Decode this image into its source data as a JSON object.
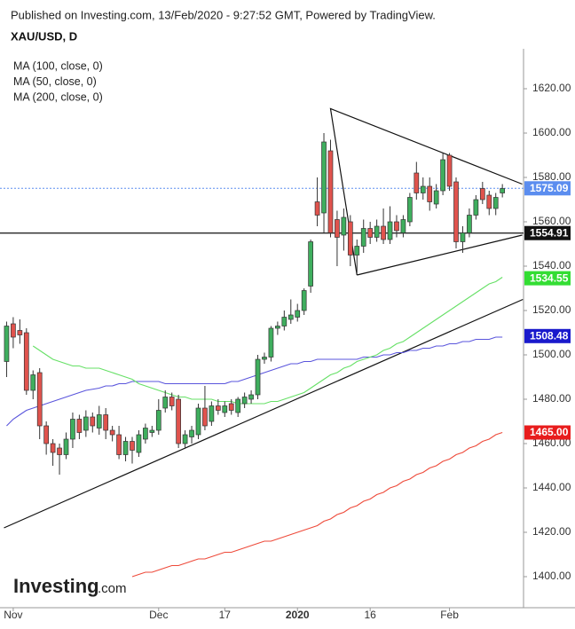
{
  "chart_data": {
    "type": "candlestick",
    "source": "Published on Investing.com, 13/Feb/2020 - 9:27:52 GMT, Powered by TradingView.",
    "title": "XAU/USD, D",
    "watermark": "Investing",
    "watermark_suffix": ".com",
    "categories": [
      null,
      "Nov",
      null,
      null,
      null,
      null,
      null,
      null,
      null,
      null,
      null,
      null,
      null,
      null,
      null,
      null,
      null,
      null,
      null,
      null,
      null,
      null,
      null,
      "Dec",
      null,
      null,
      null,
      null,
      null,
      null,
      null,
      null,
      null,
      "17",
      null,
      null,
      null,
      null,
      null,
      null,
      null,
      null,
      null,
      null,
      "2020",
      null,
      null,
      null,
      null,
      null,
      null,
      null,
      null,
      null,
      null,
      "16",
      null,
      null,
      null,
      null,
      null,
      null,
      null,
      null,
      null,
      null,
      null,
      "Feb",
      null,
      null,
      null,
      null,
      null,
      null,
      null,
      null
    ],
    "open": [
      1497,
      1514,
      1511,
      1510,
      1484,
      1492,
      1468,
      1460,
      1458,
      1455,
      1462,
      1471,
      1466,
      1472,
      1467,
      1473,
      1466,
      1464,
      1455,
      1461,
      1456,
      1462,
      1465,
      1466,
      1476,
      1481,
      1480,
      1460,
      1463,
      1464,
      1476,
      1470,
      1477,
      1474,
      1478,
      1474,
      1478,
      1480,
      1482,
      1498,
      1499,
      1512,
      1513,
      1516,
      1517,
      1520,
      1531,
      1569,
      1564,
      1592,
      1561,
      1554,
      1560,
      1545,
      1549,
      1557,
      1553,
      1558,
      1552,
      1560,
      1555,
      1560,
      1582,
      1573,
      1576,
      1568,
      1574,
      1590,
      1578,
      1551,
      1555,
      1563,
      1575,
      1572,
      1566,
      1573
    ],
    "high": [
      1515,
      1517,
      1516,
      1512,
      1493,
      1494,
      1470,
      1462,
      1460,
      1465,
      1474,
      1473,
      1475,
      1474,
      1477,
      1476,
      1468,
      1468,
      1463,
      1463,
      1466,
      1469,
      1468,
      1480,
      1484,
      1483,
      1482,
      1466,
      1468,
      1478,
      1486,
      1479,
      1480,
      1479,
      1480,
      1481,
      1483,
      1484,
      1500,
      1501,
      1513,
      1515,
      1520,
      1525,
      1523,
      1530,
      1552,
      1580,
      1600,
      1597,
      1565,
      1566,
      1563,
      1552,
      1561,
      1560,
      1561,
      1566,
      1567,
      1563,
      1563,
      1573,
      1587,
      1580,
      1580,
      1577,
      1591,
      1591,
      1580,
      1558,
      1566,
      1572,
      1578,
      1574,
      1573,
      1577
    ],
    "low": [
      1490,
      1503,
      1505,
      1482,
      1480,
      1462,
      1455,
      1450,
      1446,
      1453,
      1458,
      1462,
      1463,
      1465,
      1464,
      1462,
      1461,
      1453,
      1452,
      1451,
      1454,
      1460,
      1463,
      1464,
      1474,
      1475,
      1458,
      1458,
      1460,
      1462,
      1466,
      1468,
      1473,
      1472,
      1473,
      1472,
      1476,
      1478,
      1480,
      1496,
      1497,
      1509,
      1511,
      1514,
      1515,
      1518,
      1528,
      1558,
      1555,
      1553,
      1540,
      1547,
      1540,
      1537,
      1546,
      1550,
      1551,
      1550,
      1550,
      1553,
      1553,
      1558,
      1570,
      1570,
      1565,
      1566,
      1572,
      1574,
      1548,
      1546,
      1553,
      1561,
      1568,
      1563,
      1563,
      1571
    ],
    "close": [
      1513,
      1508,
      1509,
      1484,
      1491,
      1468,
      1460,
      1456,
      1455,
      1462,
      1471,
      1465,
      1472,
      1468,
      1473,
      1466,
      1464,
      1455,
      1461,
      1457,
      1464,
      1467,
      1466,
      1475,
      1481,
      1477,
      1460,
      1464,
      1466,
      1476,
      1468,
      1477,
      1475,
      1477,
      1475,
      1480,
      1481,
      1482,
      1498,
      1499,
      1512,
      1513,
      1517,
      1518,
      1520,
      1529,
      1551,
      1563,
      1596,
      1555,
      1553,
      1562,
      1545,
      1549,
      1557,
      1553,
      1558,
      1552,
      1560,
      1556,
      1561,
      1571,
      1573,
      1576,
      1569,
      1574,
      1588,
      1576,
      1551,
      1555,
      1563,
      1570,
      1570,
      1566,
      1571,
      1575
    ],
    "up_color": "#3fae5e",
    "down_color": "#e0534d",
    "series": [
      {
        "name": "MA (100, close, 0)",
        "color": "#5a55dc",
        "values": [
          1468,
          1471,
          1473,
          1475,
          1476,
          1477,
          1478,
          1479,
          1480,
          1481,
          1482,
          1483,
          1484,
          1484.5,
          1485,
          1486,
          1486,
          1487,
          1487,
          1488,
          1488,
          1488,
          1488,
          1488,
          1487,
          1487,
          1487,
          1487,
          1487,
          1487,
          1487,
          1487,
          1487,
          1487,
          1488,
          1488,
          1489,
          1490,
          1491,
          1492,
          1493,
          1494,
          1495,
          1496,
          1496,
          1497,
          1497,
          1498,
          1498,
          1498,
          1498,
          1498,
          1498,
          1498,
          1499,
          1499,
          1499,
          1500,
          1500,
          1501,
          1501,
          1502,
          1502,
          1503,
          1503,
          1504,
          1504,
          1505,
          1505,
          1506,
          1506,
          1507,
          1507,
          1507,
          1508,
          1508
        ]
      },
      {
        "name": "MA (50, close, 0)",
        "color": "#66e066",
        "values": [
          null,
          null,
          null,
          null,
          1504,
          1502,
          1500,
          1498,
          1497,
          1496,
          1495,
          1495,
          1494,
          1494,
          1494,
          1493,
          1492,
          1491,
          1490,
          1489,
          1487,
          1486,
          1485,
          1484,
          1483,
          1482,
          1481,
          1481,
          1480,
          1480,
          1480,
          1480,
          1479,
          1479,
          1479,
          1478,
          1478,
          1478,
          1478,
          1478,
          1479,
          1479,
          1480,
          1481,
          1482,
          1483,
          1485,
          1487,
          1489,
          1491,
          1492,
          1494,
          1495,
          1497,
          1498,
          1499,
          1500,
          1502,
          1503,
          1505,
          1506,
          1508,
          1510,
          1512,
          1514,
          1516,
          1518,
          1520,
          1522,
          1524,
          1526,
          1528,
          1530,
          1532,
          1533,
          1535
        ]
      },
      {
        "name": "MA (200, close, 0)",
        "color": "#ee4a3a",
        "values": [
          null,
          null,
          null,
          null,
          null,
          null,
          null,
          null,
          null,
          null,
          null,
          null,
          null,
          null,
          null,
          null,
          null,
          null,
          null,
          1400,
          1401,
          1402,
          1402,
          1403,
          1404,
          1405,
          1405,
          1406,
          1407,
          1408,
          1408,
          1409,
          1410,
          1411,
          1411,
          1412,
          1413,
          1414,
          1415,
          1416,
          1416,
          1417,
          1418,
          1419,
          1420,
          1421,
          1422,
          1423,
          1425,
          1426,
          1428,
          1429,
          1431,
          1432,
          1434,
          1435,
          1437,
          1438,
          1440,
          1441,
          1443,
          1444,
          1446,
          1447,
          1449,
          1450,
          1452,
          1453,
          1455,
          1456,
          1458,
          1459,
          1461,
          1462,
          1464,
          1465
        ]
      }
    ],
    "trendlines": [
      {
        "points": [
          [
            53,
            1536
          ],
          [
            49,
            1611
          ],
          [
            78,
            1577
          ]
        ]
      },
      {
        "points": [
          [
            53,
            1536
          ],
          [
            78,
            1554
          ]
        ]
      },
      {
        "points": [
          [
            -0.4,
            1422
          ],
          [
            78.1,
            1525
          ]
        ]
      }
    ],
    "tags": [
      {
        "value": 1575.09,
        "color": "#5b8def",
        "line": "dotted"
      },
      {
        "value": 1554.91,
        "color": "#111111",
        "line": "solid"
      },
      {
        "value": 1534.55,
        "color": "#33dd33"
      },
      {
        "value": 1508.48,
        "color": "#1a1acc"
      },
      {
        "value": 1465,
        "label": "1465.00",
        "color": "#e81c1c"
      }
    ],
    "xlim": [
      -1,
      78.2
    ],
    "ylim": [
      1386,
      1638
    ],
    "yticks": [
      {
        "value": 1400,
        "label": "1400.00"
      },
      {
        "value": 1420,
        "label": "1420.00"
      },
      {
        "value": 1440,
        "label": "1440.00"
      },
      {
        "value": 1460,
        "label": "1460.00"
      },
      {
        "value": 1480,
        "label": "1480.00"
      },
      {
        "value": 1500,
        "label": "1500.00"
      },
      {
        "value": 1520,
        "label": "1520.00"
      },
      {
        "value": 1540,
        "label": "1540.00"
      },
      {
        "value": 1560,
        "label": "1560.00"
      },
      {
        "value": 1580,
        "label": "1580.00"
      },
      {
        "value": 1600,
        "label": "1600.00"
      },
      {
        "value": 1620,
        "label": "1620.00"
      }
    ]
  }
}
